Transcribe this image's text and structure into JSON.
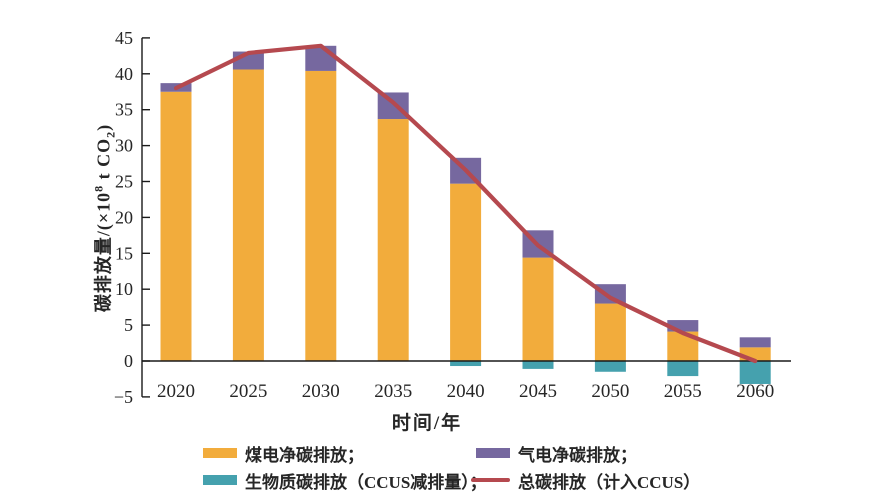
{
  "figure": {
    "xlabel": "时间/年",
    "ylabel_parts": {
      "prefix": "碳排放量/(×10",
      "sup": "8",
      "mid": " t CO",
      "sub": "2",
      "suffix": ")"
    }
  },
  "legend": {
    "items": [
      {
        "label": "煤电净碳排放；",
        "color": "#F2AC3C",
        "shape": "rect"
      },
      {
        "label": "气电净碳排放；",
        "color": "#76689F",
        "shape": "rect"
      },
      {
        "label": "生物质碳排放（CCUS减排量）；",
        "color": "#45A1AE",
        "shape": "rect"
      },
      {
        "label": "总碳排放（计入CCUS）",
        "color": "#B5494F",
        "shape": "line"
      }
    ]
  },
  "chart_data": {
    "type": "bar",
    "stacked": true,
    "title": "",
    "xlabel": "时间/年",
    "ylabel": "碳排放量/(×10⁸ t CO₂)",
    "categories": [
      "2020",
      "2025",
      "2030",
      "2035",
      "2040",
      "2045",
      "2050",
      "2055",
      "2060"
    ],
    "series": [
      {
        "name": "煤电净碳排放",
        "kind": "bar",
        "color": "#F2AC3C",
        "values": [
          37.5,
          40.6,
          40.4,
          33.7,
          24.7,
          14.4,
          8.0,
          4.1,
          1.9
        ]
      },
      {
        "name": "气电净碳排放",
        "kind": "bar",
        "color": "#76689F",
        "values": [
          1.2,
          2.5,
          3.5,
          3.7,
          3.6,
          3.8,
          2.7,
          1.6,
          1.4
        ]
      },
      {
        "name": "生物质碳排放（CCUS减排量）",
        "kind": "bar",
        "color": "#45A1AE",
        "values": [
          0,
          0,
          0,
          0,
          -0.7,
          -1.1,
          -1.5,
          -2.1,
          -3.2
        ]
      },
      {
        "name": "总碳排放（计入CCUS）",
        "kind": "line",
        "color": "#B5494F",
        "values": [
          38.0,
          42.9,
          43.9,
          36.0,
          26.6,
          16.1,
          8.8,
          3.9,
          0.0
        ]
      }
    ],
    "ylim": [
      -5,
      45
    ],
    "ytick_step": 5,
    "grid": false,
    "legend_position": "bottom",
    "axis_color": "#1a1a1a",
    "text_color": "#262626"
  }
}
